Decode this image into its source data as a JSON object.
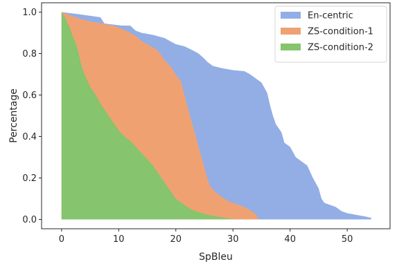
{
  "chart_data": {
    "type": "area",
    "title": "",
    "xlabel": "SpBleu",
    "ylabel": "Percentage",
    "xlim": [
      -3.5,
      57.5
    ],
    "ylim": [
      -0.045,
      1.045
    ],
    "xticks": [
      0,
      10,
      20,
      30,
      40,
      50
    ],
    "yticks": [
      0.0,
      0.2,
      0.4,
      0.6,
      0.8,
      1.0
    ],
    "grid": false,
    "legend_position": "top-right",
    "series": [
      {
        "name": "En-centric",
        "color": "#92aee5",
        "points": [
          [
            0,
            1.0
          ],
          [
            3,
            0.99
          ],
          [
            6.8,
            0.975
          ],
          [
            7.5,
            0.945
          ],
          [
            10.5,
            0.935
          ],
          [
            12,
            0.935
          ],
          [
            13,
            0.91
          ],
          [
            14,
            0.9
          ],
          [
            16,
            0.89
          ],
          [
            18,
            0.875
          ],
          [
            19,
            0.86
          ],
          [
            20,
            0.845
          ],
          [
            21.5,
            0.835
          ],
          [
            23,
            0.815
          ],
          [
            24,
            0.8
          ],
          [
            25,
            0.775
          ],
          [
            25.5,
            0.76
          ],
          [
            26.5,
            0.74
          ],
          [
            28,
            0.73
          ],
          [
            30,
            0.72
          ],
          [
            32,
            0.715
          ],
          [
            33,
            0.7
          ],
          [
            34,
            0.68
          ],
          [
            35,
            0.66
          ],
          [
            36,
            0.61
          ],
          [
            36.5,
            0.55
          ],
          [
            37,
            0.5
          ],
          [
            37.5,
            0.46
          ],
          [
            38.5,
            0.42
          ],
          [
            39,
            0.37
          ],
          [
            40,
            0.35
          ],
          [
            41,
            0.3
          ],
          [
            42,
            0.28
          ],
          [
            43,
            0.26
          ],
          [
            44,
            0.2
          ],
          [
            45,
            0.15
          ],
          [
            45.5,
            0.1
          ],
          [
            46,
            0.08
          ],
          [
            47,
            0.07
          ],
          [
            48,
            0.06
          ],
          [
            49,
            0.04
          ],
          [
            50,
            0.03
          ],
          [
            51,
            0.025
          ],
          [
            52,
            0.02
          ],
          [
            53,
            0.015
          ],
          [
            54.2,
            0.008
          ],
          [
            54.2,
            0.0
          ]
        ]
      },
      {
        "name": "ZS-condition-1",
        "color": "#f0a172",
        "points": [
          [
            0,
            1.0
          ],
          [
            1,
            0.99
          ],
          [
            3,
            0.97
          ],
          [
            5,
            0.955
          ],
          [
            7,
            0.945
          ],
          [
            9,
            0.935
          ],
          [
            10,
            0.925
          ],
          [
            11,
            0.915
          ],
          [
            12,
            0.9
          ],
          [
            13,
            0.885
          ],
          [
            14,
            0.86
          ],
          [
            15,
            0.845
          ],
          [
            16,
            0.83
          ],
          [
            17,
            0.81
          ],
          [
            17.5,
            0.79
          ],
          [
            18,
            0.77
          ],
          [
            19,
            0.74
          ],
          [
            19.5,
            0.72
          ],
          [
            20,
            0.7
          ],
          [
            20.5,
            0.68
          ],
          [
            21,
            0.66
          ],
          [
            21.5,
            0.6
          ],
          [
            22,
            0.55
          ],
          [
            22.5,
            0.5
          ],
          [
            23,
            0.45
          ],
          [
            23.5,
            0.4
          ],
          [
            24,
            0.35
          ],
          [
            24.5,
            0.3
          ],
          [
            25,
            0.25
          ],
          [
            25.5,
            0.2
          ],
          [
            26,
            0.16
          ],
          [
            27,
            0.13
          ],
          [
            28,
            0.11
          ],
          [
            29,
            0.09
          ],
          [
            30,
            0.08
          ],
          [
            31,
            0.07
          ],
          [
            32,
            0.06
          ],
          [
            33,
            0.045
          ],
          [
            34,
            0.025
          ],
          [
            34.5,
            0.0
          ]
        ]
      },
      {
        "name": "ZS-condition-2",
        "color": "#86c46d",
        "points": [
          [
            0,
            1.0
          ],
          [
            0.5,
            0.98
          ],
          [
            1,
            0.95
          ],
          [
            1.5,
            0.92
          ],
          [
            2,
            0.88
          ],
          [
            2.5,
            0.85
          ],
          [
            3,
            0.8
          ],
          [
            3.5,
            0.74
          ],
          [
            4,
            0.7
          ],
          [
            4.5,
            0.67
          ],
          [
            5,
            0.64
          ],
          [
            6,
            0.6
          ],
          [
            7,
            0.55
          ],
          [
            8,
            0.51
          ],
          [
            9,
            0.47
          ],
          [
            10,
            0.43
          ],
          [
            11,
            0.4
          ],
          [
            12,
            0.38
          ],
          [
            13,
            0.35
          ],
          [
            14,
            0.32
          ],
          [
            15,
            0.29
          ],
          [
            16,
            0.26
          ],
          [
            17,
            0.22
          ],
          [
            18,
            0.18
          ],
          [
            19,
            0.14
          ],
          [
            20,
            0.1
          ],
          [
            21,
            0.08
          ],
          [
            22,
            0.06
          ],
          [
            23,
            0.045
          ],
          [
            24,
            0.035
          ],
          [
            25,
            0.028
          ],
          [
            26,
            0.02
          ],
          [
            27,
            0.015
          ],
          [
            28,
            0.01
          ],
          [
            29,
            0.005
          ],
          [
            30,
            0.002
          ],
          [
            31,
            0.0
          ]
        ]
      }
    ]
  }
}
